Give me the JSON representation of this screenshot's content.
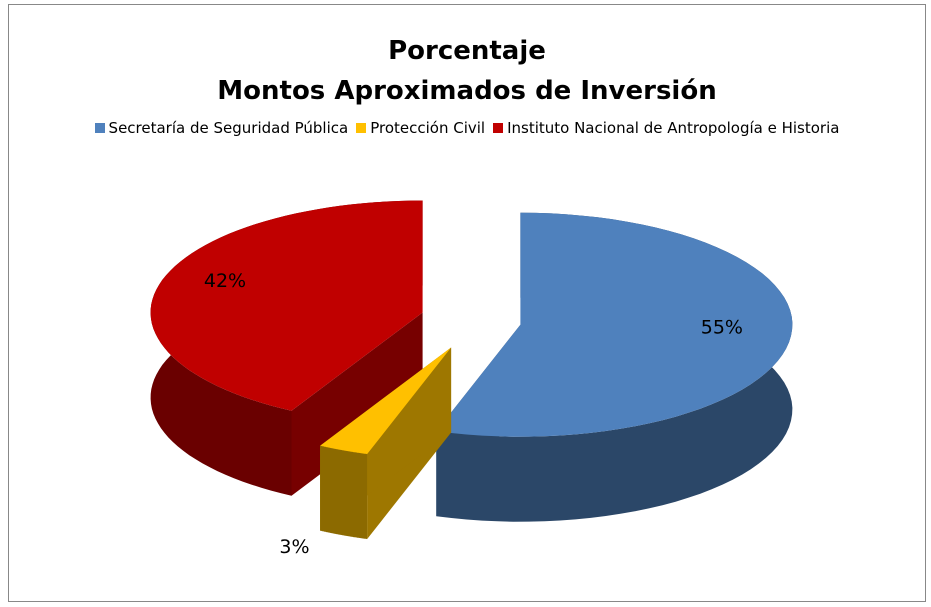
{
  "chart_data": {
    "type": "pie3d",
    "title": [
      "Porcentaje",
      "Montos Aproximados de Inversión"
    ],
    "categories": [
      "Secretaría de Seguridad Pública",
      "Protección Civil",
      "Instituto Nacional de Antropología e Historia"
    ],
    "values": [
      55,
      3,
      42
    ],
    "value_labels": [
      "55%",
      "3%",
      "42%"
    ],
    "colors": [
      "#4f81bd",
      "#ffc000",
      "#c00000"
    ],
    "legend": "top"
  }
}
